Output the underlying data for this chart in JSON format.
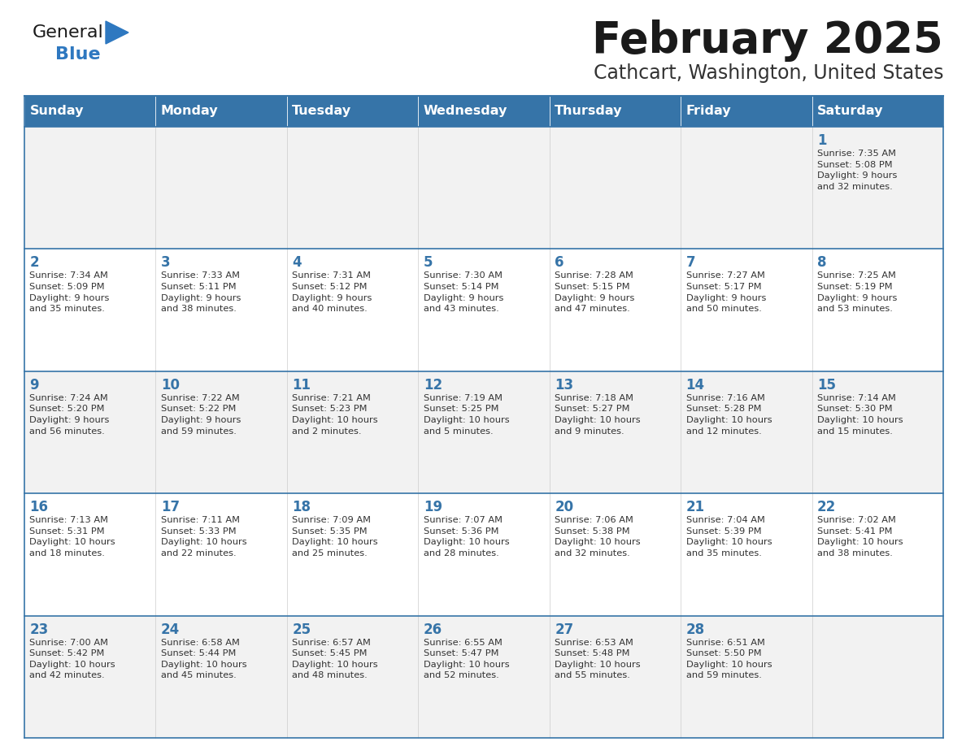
{
  "title": "February 2025",
  "subtitle": "Cathcart, Washington, United States",
  "header_bg": "#3674A8",
  "header_text_color": "#FFFFFF",
  "row_bg_odd": "#F2F2F2",
  "row_bg_even": "#FFFFFF",
  "cell_border_color": "#3674A8",
  "day_number_color": "#3674A8",
  "cell_text_color": "#333333",
  "days_of_week": [
    "Sunday",
    "Monday",
    "Tuesday",
    "Wednesday",
    "Thursday",
    "Friday",
    "Saturday"
  ],
  "calendar_data": [
    [
      null,
      null,
      null,
      null,
      null,
      null,
      {
        "day": 1,
        "sunrise": "7:35 AM",
        "sunset": "5:08 PM",
        "daylight": "9 hours\nand 32 minutes."
      }
    ],
    [
      {
        "day": 2,
        "sunrise": "7:34 AM",
        "sunset": "5:09 PM",
        "daylight": "9 hours\nand 35 minutes."
      },
      {
        "day": 3,
        "sunrise": "7:33 AM",
        "sunset": "5:11 PM",
        "daylight": "9 hours\nand 38 minutes."
      },
      {
        "day": 4,
        "sunrise": "7:31 AM",
        "sunset": "5:12 PM",
        "daylight": "9 hours\nand 40 minutes."
      },
      {
        "day": 5,
        "sunrise": "7:30 AM",
        "sunset": "5:14 PM",
        "daylight": "9 hours\nand 43 minutes."
      },
      {
        "day": 6,
        "sunrise": "7:28 AM",
        "sunset": "5:15 PM",
        "daylight": "9 hours\nand 47 minutes."
      },
      {
        "day": 7,
        "sunrise": "7:27 AM",
        "sunset": "5:17 PM",
        "daylight": "9 hours\nand 50 minutes."
      },
      {
        "day": 8,
        "sunrise": "7:25 AM",
        "sunset": "5:19 PM",
        "daylight": "9 hours\nand 53 minutes."
      }
    ],
    [
      {
        "day": 9,
        "sunrise": "7:24 AM",
        "sunset": "5:20 PM",
        "daylight": "9 hours\nand 56 minutes."
      },
      {
        "day": 10,
        "sunrise": "7:22 AM",
        "sunset": "5:22 PM",
        "daylight": "9 hours\nand 59 minutes."
      },
      {
        "day": 11,
        "sunrise": "7:21 AM",
        "sunset": "5:23 PM",
        "daylight": "10 hours\nand 2 minutes."
      },
      {
        "day": 12,
        "sunrise": "7:19 AM",
        "sunset": "5:25 PM",
        "daylight": "10 hours\nand 5 minutes."
      },
      {
        "day": 13,
        "sunrise": "7:18 AM",
        "sunset": "5:27 PM",
        "daylight": "10 hours\nand 9 minutes."
      },
      {
        "day": 14,
        "sunrise": "7:16 AM",
        "sunset": "5:28 PM",
        "daylight": "10 hours\nand 12 minutes."
      },
      {
        "day": 15,
        "sunrise": "7:14 AM",
        "sunset": "5:30 PM",
        "daylight": "10 hours\nand 15 minutes."
      }
    ],
    [
      {
        "day": 16,
        "sunrise": "7:13 AM",
        "sunset": "5:31 PM",
        "daylight": "10 hours\nand 18 minutes."
      },
      {
        "day": 17,
        "sunrise": "7:11 AM",
        "sunset": "5:33 PM",
        "daylight": "10 hours\nand 22 minutes."
      },
      {
        "day": 18,
        "sunrise": "7:09 AM",
        "sunset": "5:35 PM",
        "daylight": "10 hours\nand 25 minutes."
      },
      {
        "day": 19,
        "sunrise": "7:07 AM",
        "sunset": "5:36 PM",
        "daylight": "10 hours\nand 28 minutes."
      },
      {
        "day": 20,
        "sunrise": "7:06 AM",
        "sunset": "5:38 PM",
        "daylight": "10 hours\nand 32 minutes."
      },
      {
        "day": 21,
        "sunrise": "7:04 AM",
        "sunset": "5:39 PM",
        "daylight": "10 hours\nand 35 minutes."
      },
      {
        "day": 22,
        "sunrise": "7:02 AM",
        "sunset": "5:41 PM",
        "daylight": "10 hours\nand 38 minutes."
      }
    ],
    [
      {
        "day": 23,
        "sunrise": "7:00 AM",
        "sunset": "5:42 PM",
        "daylight": "10 hours\nand 42 minutes."
      },
      {
        "day": 24,
        "sunrise": "6:58 AM",
        "sunset": "5:44 PM",
        "daylight": "10 hours\nand 45 minutes."
      },
      {
        "day": 25,
        "sunrise": "6:57 AM",
        "sunset": "5:45 PM",
        "daylight": "10 hours\nand 48 minutes."
      },
      {
        "day": 26,
        "sunrise": "6:55 AM",
        "sunset": "5:47 PM",
        "daylight": "10 hours\nand 52 minutes."
      },
      {
        "day": 27,
        "sunrise": "6:53 AM",
        "sunset": "5:48 PM",
        "daylight": "10 hours\nand 55 minutes."
      },
      {
        "day": 28,
        "sunrise": "6:51 AM",
        "sunset": "5:50 PM",
        "daylight": "10 hours\nand 59 minutes."
      },
      null
    ]
  ],
  "logo_general_color": "#1a1a1a",
  "logo_blue_color": "#2E78C0",
  "logo_triangle_color": "#2E78C0",
  "title_color": "#1a1a1a",
  "subtitle_color": "#333333"
}
